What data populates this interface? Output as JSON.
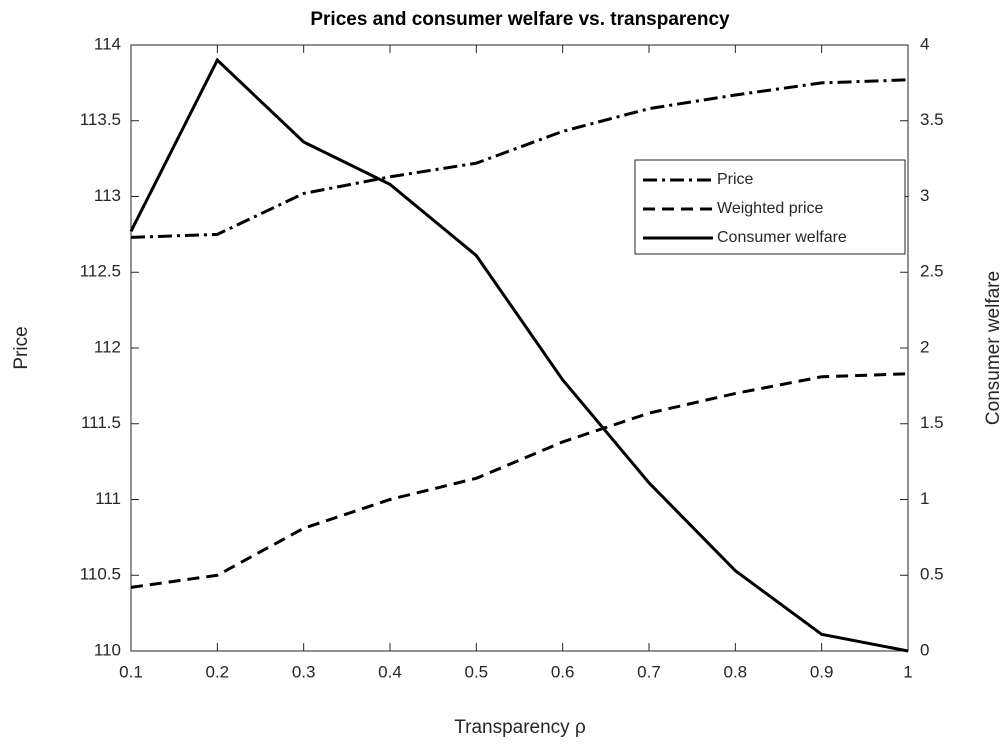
{
  "chart_data": {
    "type": "line",
    "title": "Prices and consumer welfare vs. transparency",
    "x_label": "Transparency ρ",
    "y_label": "Price",
    "y2_label": "Consumer welfare",
    "x": [
      0.1,
      0.2,
      0.3,
      0.4,
      0.5,
      0.6,
      0.7,
      0.8,
      0.9,
      1
    ],
    "series": [
      {
        "name": "Price",
        "color": "#000000",
        "dash": "dashdot",
        "axis": "y",
        "values": [
          112.73,
          112.75,
          113.02,
          113.13,
          113.22,
          113.43,
          113.58,
          113.67,
          113.75,
          113.77
        ]
      },
      {
        "name": "Weighted price",
        "color": "#000000",
        "dash": "dashed",
        "axis": "y",
        "values": [
          110.42,
          110.5,
          110.81,
          111.0,
          111.14,
          111.38,
          111.57,
          111.7,
          111.81,
          111.83
        ]
      },
      {
        "name": "Consumer welfare",
        "color": "#000000",
        "dash": "solid",
        "axis": "y2",
        "values": [
          2.77,
          3.9,
          3.36,
          3.08,
          2.61,
          1.79,
          1.11,
          0.53,
          0.11,
          0
        ]
      }
    ],
    "xlim": [
      0.1,
      1
    ],
    "xticks": [
      0.1,
      0.2,
      0.3,
      0.4,
      0.5,
      0.6,
      0.7,
      0.8,
      0.9,
      1
    ],
    "ylim": [
      110,
      114
    ],
    "yticks": [
      110,
      110.5,
      111,
      111.5,
      112,
      112.5,
      113,
      113.5,
      114
    ],
    "y2lim": [
      0,
      4
    ],
    "y2ticks": [
      0,
      0.5,
      1,
      1.5,
      2,
      2.5,
      3,
      3.5,
      4
    ],
    "legend": "upper right"
  }
}
